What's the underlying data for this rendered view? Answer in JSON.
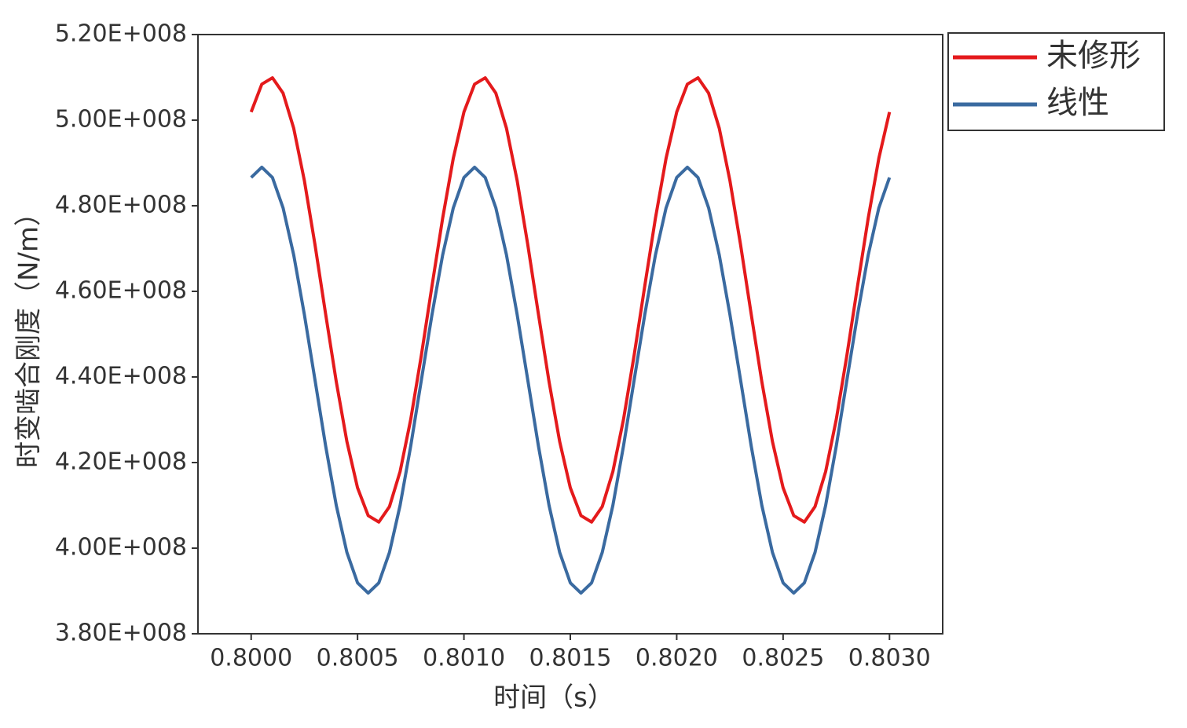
{
  "chart_data": {
    "type": "line",
    "x_label": "时间（s）",
    "y_label": "时变啮合刚度（N/m）",
    "x": [
      0.8,
      0.80005,
      0.8001,
      0.80015,
      0.8002,
      0.80025,
      0.8003,
      0.80035,
      0.8004,
      0.80045,
      0.8005,
      0.80055,
      0.8006,
      0.80065,
      0.8007,
      0.80075,
      0.8008,
      0.80085,
      0.8009,
      0.80095,
      0.801,
      0.80105,
      0.8011,
      0.80115,
      0.8012,
      0.80125,
      0.8013,
      0.80135,
      0.8014,
      0.80145,
      0.8015,
      0.80155,
      0.8016,
      0.80165,
      0.8017,
      0.80175,
      0.8018,
      0.80185,
      0.8019,
      0.80195,
      0.802,
      0.80205,
      0.8021,
      0.80215,
      0.8022,
      0.80225,
      0.8023,
      0.80235,
      0.8024,
      0.80245,
      0.8025,
      0.80255,
      0.8026,
      0.80265,
      0.8027,
      0.80275,
      0.8028,
      0.80285,
      0.8029,
      0.80295,
      0.803
    ],
    "series": [
      {
        "name": "未修形",
        "color": "#e41a1c",
        "values": [
          501900000,
          508400000,
          509900000,
          506300000,
          498100000,
          485900000,
          470900000,
          454700000,
          438900000,
          424900000,
          414100000,
          407600000,
          406100000,
          409700000,
          417900000,
          430100000,
          445100000,
          461300000,
          477100000,
          491100000,
          501900000,
          508400000,
          509900000,
          506300000,
          498100000,
          485900000,
          470900000,
          454700000,
          438900000,
          424900000,
          414100000,
          407600000,
          406100000,
          409700000,
          417900000,
          430100000,
          445100000,
          461300000,
          477100000,
          491100000,
          501900000,
          508400000,
          509900000,
          506300000,
          498100000,
          485900000,
          470900000,
          454700000,
          438900000,
          424900000,
          414100000,
          407600000,
          406100000,
          409700000,
          417900000,
          430100000,
          445100000,
          461300000,
          477100000,
          491100000,
          501900000
        ]
      },
      {
        "name": "线性",
        "color": "#3a6aa0",
        "values": [
          486600000,
          489000000,
          486600000,
          479500000,
          468500000,
          454600000,
          439300000,
          423900000,
          410000000,
          399000000,
          391900000,
          389500000,
          391900000,
          399000000,
          410000000,
          423900000,
          439300000,
          454600000,
          468500000,
          479500000,
          486600000,
          489000000,
          486600000,
          479500000,
          468500000,
          454600000,
          439300000,
          423900000,
          410000000,
          399000000,
          391900000,
          389500000,
          391900000,
          399000000,
          410000000,
          423900000,
          439300000,
          454600000,
          468500000,
          479500000,
          486600000,
          489000000,
          486600000,
          479500000,
          468500000,
          454600000,
          439300000,
          423900000,
          410000000,
          399000000,
          391900000,
          389500000,
          391900000,
          399000000,
          410000000,
          423900000,
          439300000,
          454600000,
          468500000,
          479500000,
          486600000
        ]
      }
    ],
    "xlim": [
      0.79975,
      0.80325
    ],
    "ylim": [
      380000000,
      520000000
    ],
    "xticks": [
      {
        "value": 0.8,
        "label": "0.8000"
      },
      {
        "value": 0.8005,
        "label": "0.8005"
      },
      {
        "value": 0.801,
        "label": "0.8010"
      },
      {
        "value": 0.8015,
        "label": "0.8015"
      },
      {
        "value": 0.802,
        "label": "0.8020"
      },
      {
        "value": 0.8025,
        "label": "0.8025"
      },
      {
        "value": 0.803,
        "label": "0.8030"
      }
    ],
    "yticks": [
      {
        "value": 380000000,
        "label": "3.80E+008"
      },
      {
        "value": 400000000,
        "label": "4.00E+008"
      },
      {
        "value": 420000000,
        "label": "4.20E+008"
      },
      {
        "value": 440000000,
        "label": "4.40E+008"
      },
      {
        "value": 460000000,
        "label": "4.60E+008"
      },
      {
        "value": 480000000,
        "label": "4.80E+008"
      },
      {
        "value": 500000000,
        "label": "5.00E+008"
      },
      {
        "value": 520000000,
        "label": "5.20E+008"
      }
    ]
  }
}
